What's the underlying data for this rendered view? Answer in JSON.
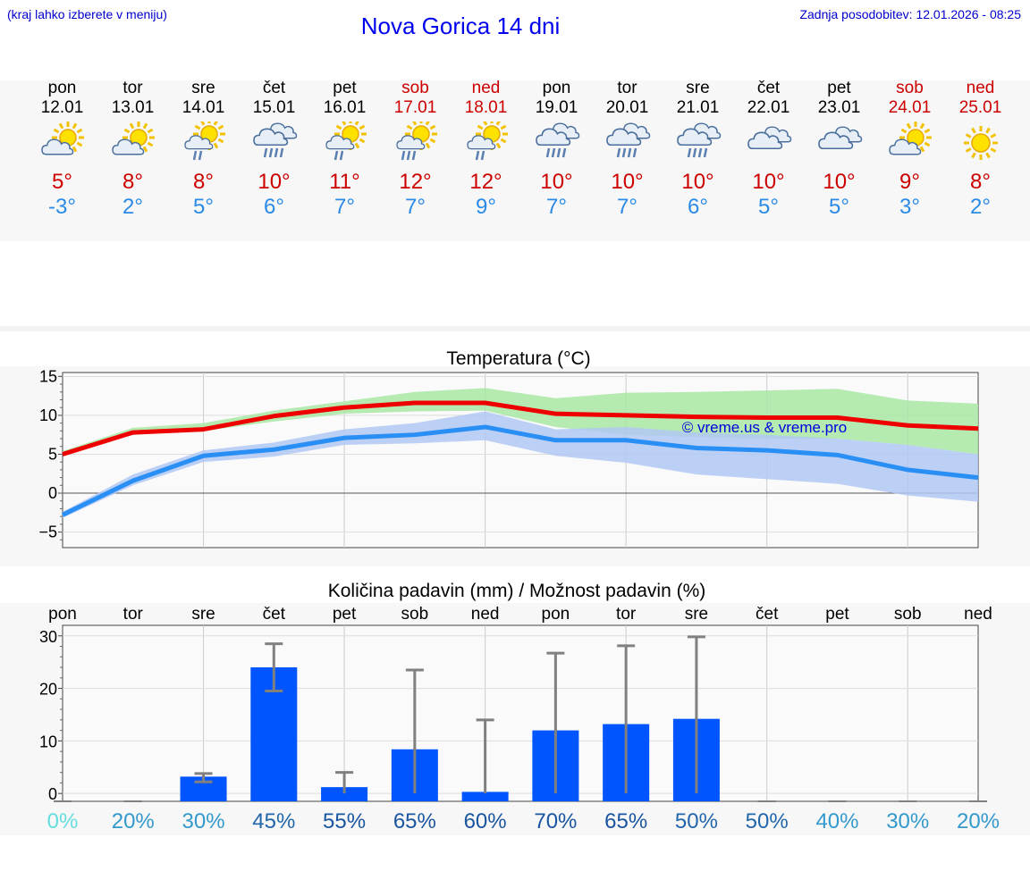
{
  "header": {
    "hint": "(kraj lahko izberete v meniju)",
    "title": "Nova Gorica 14 dni",
    "updated": "Zadnja posodobitev: 12.01.2026 - 08:25"
  },
  "forecast": {
    "days": [
      {
        "name": "pon",
        "date": "12.01",
        "icon": "sun-cloud-icon",
        "max": "5°",
        "min": "-3°",
        "weekend": false
      },
      {
        "name": "tor",
        "date": "13.01",
        "icon": "sun-cloud-icon",
        "max": "8°",
        "min": "2°",
        "weekend": false
      },
      {
        "name": "sre",
        "date": "14.01",
        "icon": "sun-cloud-rain-icon",
        "max": "8°",
        "min": "5°",
        "weekend": false
      },
      {
        "name": "čet",
        "date": "15.01",
        "icon": "cloud-heavy-rain-icon",
        "max": "10°",
        "min": "6°",
        "weekend": false
      },
      {
        "name": "pet",
        "date": "16.01",
        "icon": "sun-cloud-rain-icon",
        "max": "11°",
        "min": "7°",
        "weekend": false
      },
      {
        "name": "sob",
        "date": "17.01",
        "icon": "sun-cloud-heavy-rain-icon",
        "max": "12°",
        "min": "7°",
        "weekend": true
      },
      {
        "name": "ned",
        "date": "18.01",
        "icon": "sun-cloud-rain-icon",
        "max": "12°",
        "min": "9°",
        "weekend": true
      },
      {
        "name": "pon",
        "date": "19.01",
        "icon": "cloud-heavy-rain-icon",
        "max": "10°",
        "min": "7°",
        "weekend": false
      },
      {
        "name": "tor",
        "date": "20.01",
        "icon": "cloud-heavy-rain-icon",
        "max": "10°",
        "min": "7°",
        "weekend": false
      },
      {
        "name": "sre",
        "date": "21.01",
        "icon": "cloud-heavy-rain-icon",
        "max": "10°",
        "min": "6°",
        "weekend": false
      },
      {
        "name": "čet",
        "date": "22.01",
        "icon": "cloud-icon",
        "max": "10°",
        "min": "5°",
        "weekend": false
      },
      {
        "name": "pet",
        "date": "23.01",
        "icon": "cloud-icon",
        "max": "10°",
        "min": "5°",
        "weekend": false
      },
      {
        "name": "sob",
        "date": "24.01",
        "icon": "sun-cloud-icon",
        "max": "9°",
        "min": "3°",
        "weekend": true
      },
      {
        "name": "ned",
        "date": "25.01",
        "icon": "sun-icon",
        "max": "8°",
        "min": "2°",
        "weekend": true
      }
    ]
  },
  "chart_data": [
    {
      "type": "line",
      "title": "Temperatura (°C)",
      "watermark": "© vreme.us & vreme.pro",
      "x": [
        0,
        1,
        2,
        3,
        4,
        5,
        6,
        7,
        8,
        9,
        10,
        11,
        12,
        13
      ],
      "ylim": [
        -7,
        15.5
      ],
      "yticks": [
        15,
        10,
        5,
        0,
        -5
      ],
      "ytick_labels": [
        "15",
        "10",
        "5",
        "0",
        "−5"
      ],
      "series": [
        {
          "name": "max",
          "color": "#ee0000",
          "values": [
            5,
            7.8,
            8.2,
            9.9,
            11,
            11.6,
            11.6,
            10.2,
            10,
            9.8,
            9.7,
            9.7,
            8.7,
            8.3
          ]
        },
        {
          "name": "max_low",
          "color": "#a8e6a3",
          "values": [
            5.2,
            7.5,
            8,
            9.2,
            10.2,
            10.5,
            10.6,
            8.5,
            7.5,
            7.2,
            7,
            7,
            6.2,
            5
          ]
        },
        {
          "name": "max_high",
          "color": "#a8e6a3",
          "values": [
            5.4,
            8.4,
            9,
            10.6,
            11.8,
            13,
            13.5,
            12.2,
            12.9,
            13,
            13.2,
            13.4,
            11.9,
            11.5
          ]
        },
        {
          "name": "min",
          "color": "#2a8ff5",
          "values": [
            -2.8,
            1.6,
            4.8,
            5.6,
            7.1,
            7.5,
            8.5,
            6.8,
            6.8,
            5.8,
            5.5,
            4.9,
            3,
            2
          ]
        },
        {
          "name": "min_low",
          "color": "#b0c8f5",
          "values": [
            -3.2,
            1,
            4,
            4.7,
            6.2,
            6.4,
            6.8,
            4.8,
            3.9,
            2.4,
            1.8,
            1.2,
            -0.3,
            -1.1
          ]
        },
        {
          "name": "min_high",
          "color": "#b0c8f5",
          "values": [
            -2.4,
            2.4,
            5.5,
            6.5,
            8.2,
            9,
            10.5,
            8.2,
            8.5,
            7.8,
            7.5,
            7,
            6.2,
            5
          ]
        }
      ]
    },
    {
      "type": "bar",
      "title": "Količina padavin (mm) / Možnost padavin (%)",
      "categories": [
        "pon",
        "tor",
        "sre",
        "čet",
        "pet",
        "sob",
        "ned",
        "pon",
        "tor",
        "sre",
        "čet",
        "pet",
        "sob",
        "ned"
      ],
      "ylim": [
        -1.5,
        32
      ],
      "yticks": [
        30,
        20,
        10,
        0
      ],
      "values": [
        0,
        0,
        3.2,
        24,
        1.2,
        8.4,
        0.3,
        12,
        13.2,
        14.2,
        0,
        0,
        0,
        0
      ],
      "err_high": [
        0,
        0,
        3.8,
        28.5,
        4,
        23.5,
        14,
        26.7,
        28.1,
        29.8,
        0,
        0,
        0,
        0
      ],
      "err_low": [
        0,
        0,
        2.2,
        19.5,
        0,
        0,
        0,
        0,
        0,
        0,
        0,
        0,
        0,
        0
      ],
      "bar_color": "#0055ff",
      "probability_labels": [
        "0%",
        "20%",
        "30%",
        "45%",
        "55%",
        "65%",
        "60%",
        "70%",
        "65%",
        "50%",
        "50%",
        "40%",
        "30%",
        "20%"
      ],
      "probability_colors": [
        "#66dddd",
        "#3399cc",
        "#3399cc",
        "#2266aa",
        "#1a55a0",
        "#1a55a0",
        "#1a55a0",
        "#1a55a0",
        "#1a55a0",
        "#2266aa",
        "#2266aa",
        "#3399cc",
        "#3399cc",
        "#3399cc"
      ]
    }
  ]
}
